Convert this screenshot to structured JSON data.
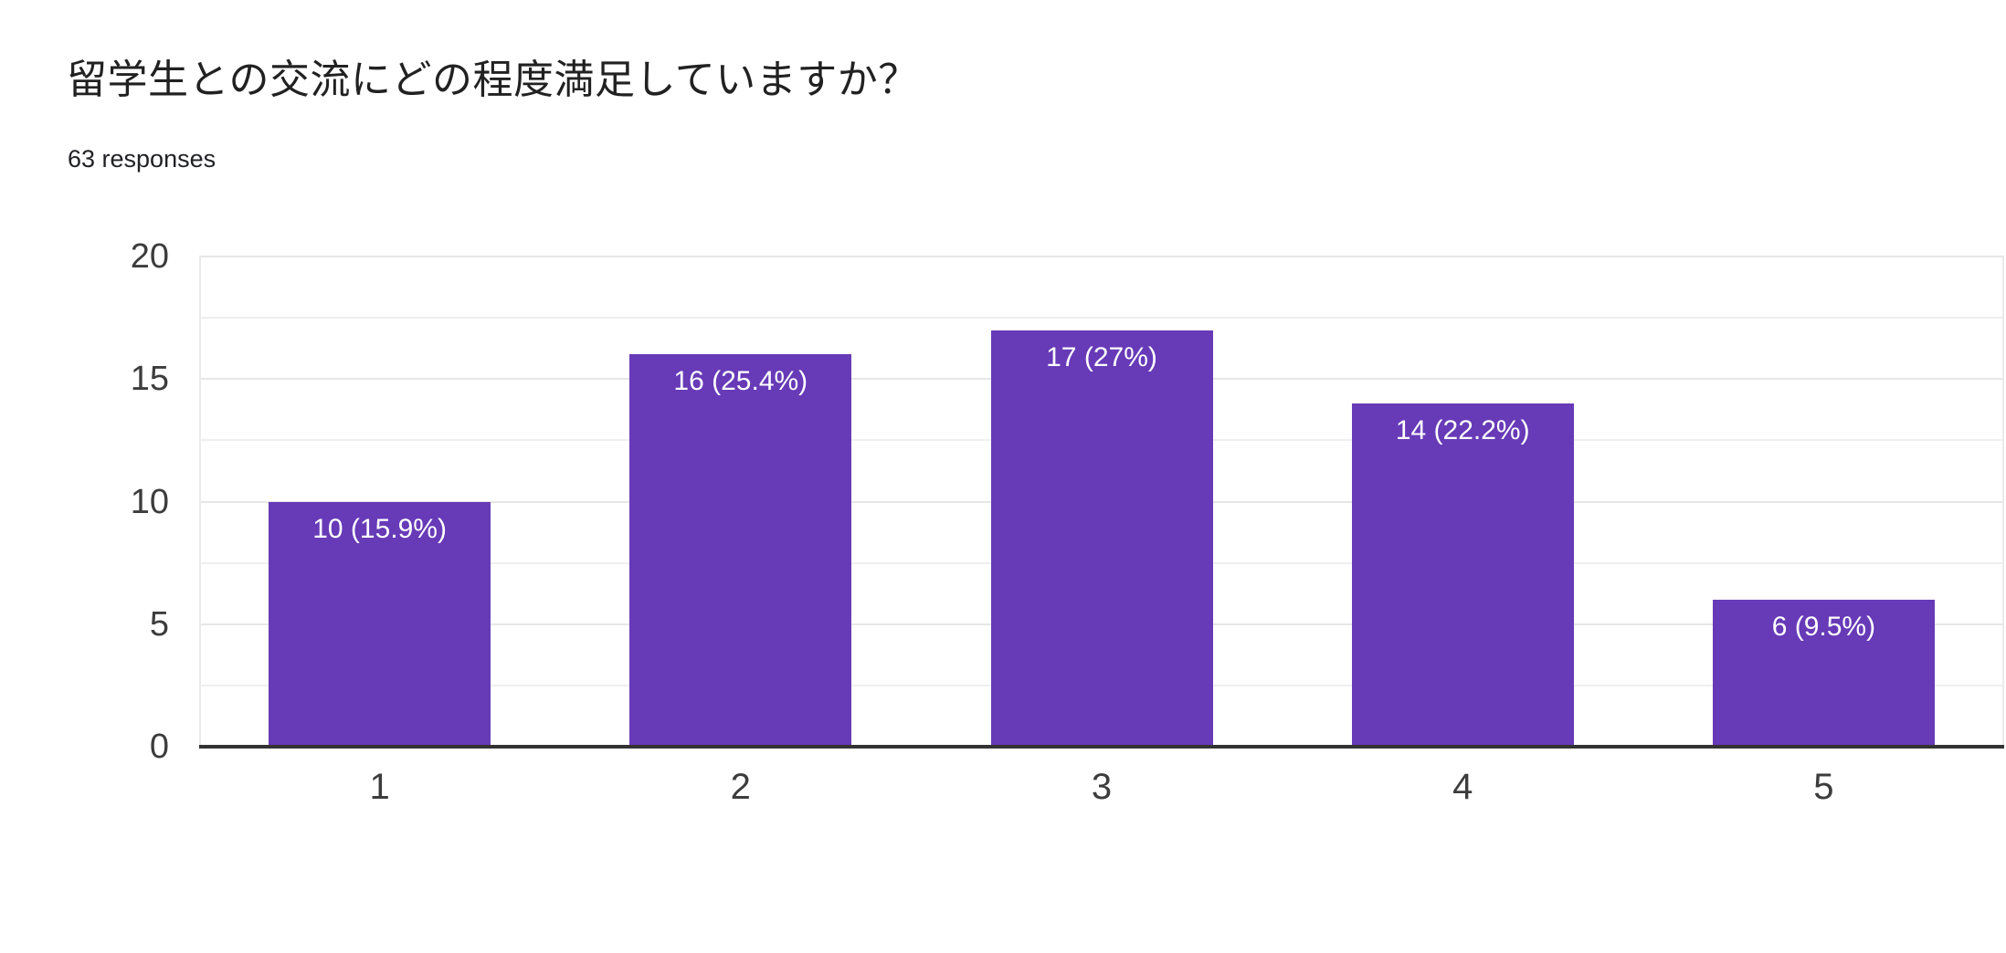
{
  "header": {
    "title": "留学生との交流にどの程度満足していますか？",
    "responses": "63 responses"
  },
  "chart_data": {
    "type": "bar",
    "title": "留学生との交流にどの程度満足していますか？",
    "subtitle": "63 responses",
    "total_responses": 63,
    "categories": [
      "1",
      "2",
      "3",
      "4",
      "5"
    ],
    "values": [
      10,
      16,
      17,
      14,
      6
    ],
    "percentages": [
      15.9,
      25.4,
      27,
      22.2,
      9.5
    ],
    "bar_labels": [
      "10 (15.9%)",
      "16 (25.4%)",
      "17 (27%)",
      "14 (22.2%)",
      "6 (9.5%)"
    ],
    "xlabel": "",
    "ylabel": "",
    "ylim": [
      0,
      20
    ],
    "yticks": [
      0,
      5,
      10,
      15,
      20
    ],
    "minor_yticks": [
      2.5,
      7.5,
      12.5,
      17.5
    ],
    "grid": true,
    "legend": "none",
    "colors": {
      "bar": "#673ab7",
      "bar_label": "#ffffff",
      "axis_line": "#333333",
      "gridline_major": "#e6e6e6",
      "gridline_minor": "#efefef",
      "tick_label": "#3c3c3c",
      "title": "#212121",
      "background": "#ffffff"
    }
  }
}
